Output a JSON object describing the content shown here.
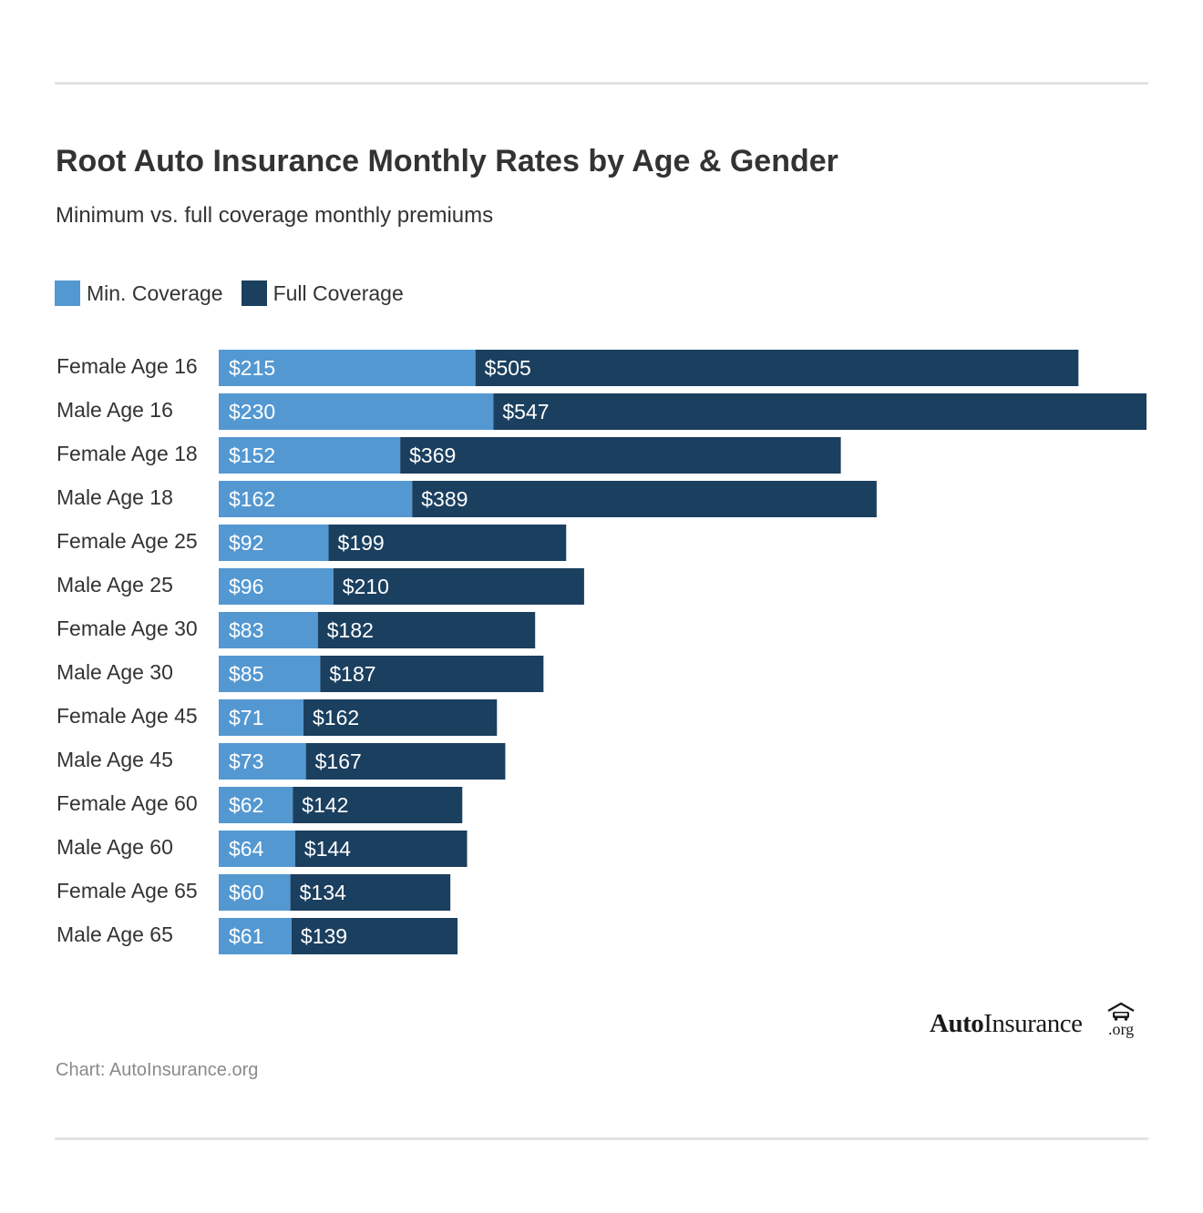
{
  "header": {
    "title": "Root Auto Insurance Monthly Rates by Age & Gender",
    "subtitle": "Minimum vs. full coverage monthly premiums"
  },
  "legend": {
    "min_label": "Min. Coverage",
    "full_label": "Full Coverage"
  },
  "colors": {
    "min": "#5498d2",
    "full": "#1b3f5f"
  },
  "footer": {
    "source": "Chart: AutoInsurance.org",
    "logo_bold": "Auto",
    "logo_rest": "Insurance",
    "logo_org": ".org",
    "logo_icon": "car-garage-icon"
  },
  "chart_data": {
    "type": "bar",
    "orientation": "horizontal",
    "stacked": true,
    "categories": [
      "Female Age 16",
      "Male Age 16",
      "Female Age 18",
      "Male Age 18",
      "Female Age 25",
      "Male Age 25",
      "Female Age 30",
      "Male Age 30",
      "Female Age 45",
      "Male Age 45",
      "Female Age 60",
      "Male Age 60",
      "Female Age 65",
      "Male Age 65"
    ],
    "series": [
      {
        "name": "Min. Coverage",
        "values": [
          215,
          230,
          152,
          162,
          92,
          96,
          83,
          85,
          71,
          73,
          62,
          64,
          60,
          61
        ]
      },
      {
        "name": "Full Coverage",
        "values": [
          505,
          547,
          369,
          389,
          199,
          210,
          182,
          187,
          162,
          167,
          142,
          144,
          134,
          139
        ]
      }
    ],
    "value_prefix": "$",
    "title": "Root Auto Insurance Monthly Rates by Age & Gender",
    "subtitle": "Minimum vs. full coverage monthly premiums",
    "grid": false,
    "legend_position": "top-left"
  }
}
